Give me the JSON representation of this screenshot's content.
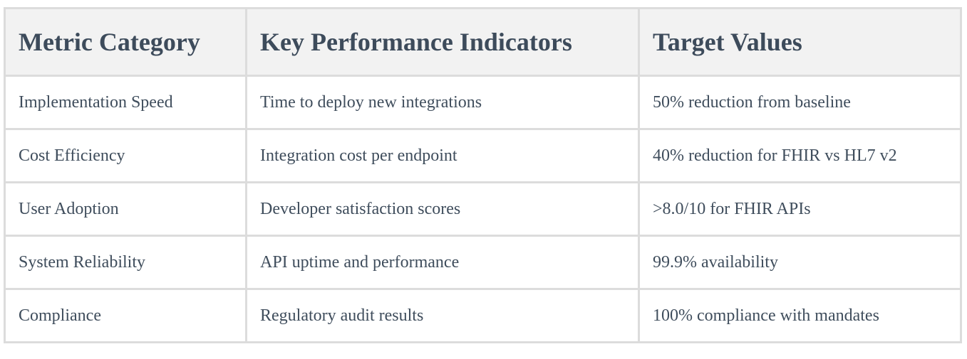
{
  "table": {
    "header": [
      "Metric Category",
      "Key Performance Indicators",
      "Target Values"
    ],
    "rows": [
      [
        "Implementation Speed",
        "Time to deploy new integrations",
        "50% reduction from baseline"
      ],
      [
        "Cost Efficiency",
        "Integration cost per endpoint",
        "40% reduction for FHIR vs HL7 v2"
      ],
      [
        "User Adoption",
        "Developer satisfaction scores",
        ">8.0/10 for FHIR APIs"
      ],
      [
        "System Reliability",
        "API uptime and performance",
        "99.9% availability"
      ],
      [
        "Compliance",
        "Regulatory audit results",
        "100% compliance with mandates"
      ]
    ]
  }
}
